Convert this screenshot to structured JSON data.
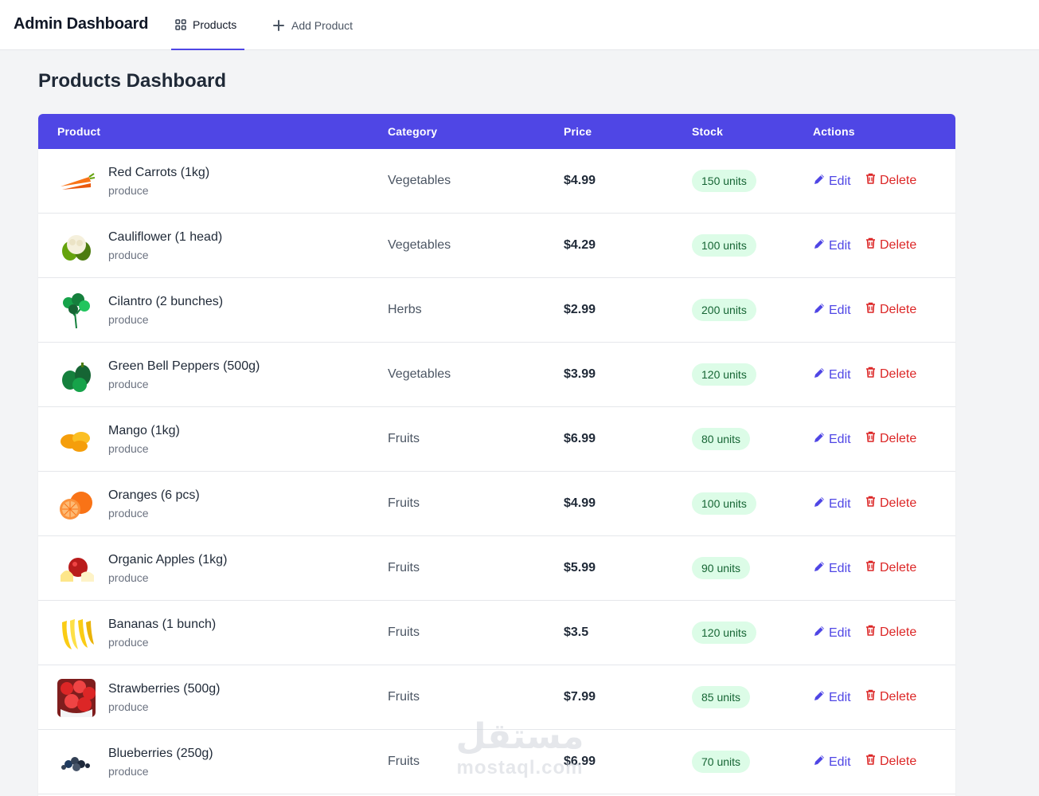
{
  "header": {
    "brand": "Admin Dashboard",
    "tabs": [
      {
        "label": "Products",
        "icon": "grid-icon",
        "active": true
      },
      {
        "label": "Add Product",
        "icon": "plus-icon",
        "active": false
      }
    ]
  },
  "page": {
    "title": "Products Dashboard"
  },
  "table": {
    "columns": [
      "Product",
      "Category",
      "Price",
      "Stock",
      "Actions"
    ],
    "edit_label": "Edit",
    "delete_label": "Delete",
    "rows": [
      {
        "name": "Red Carrots (1kg)",
        "sub": "produce",
        "category": "Vegetables",
        "price": "$4.99",
        "stock": "150 units",
        "image": "carrots"
      },
      {
        "name": "Cauliflower (1 head)",
        "sub": "produce",
        "category": "Vegetables",
        "price": "$4.29",
        "stock": "100 units",
        "image": "cauliflower"
      },
      {
        "name": "Cilantro (2 bunches)",
        "sub": "produce",
        "category": "Herbs",
        "price": "$2.99",
        "stock": "200 units",
        "image": "cilantro"
      },
      {
        "name": "Green Bell Peppers (500g)",
        "sub": "produce",
        "category": "Vegetables",
        "price": "$3.99",
        "stock": "120 units",
        "image": "peppers"
      },
      {
        "name": "Mango (1kg)",
        "sub": "produce",
        "category": "Fruits",
        "price": "$6.99",
        "stock": "80 units",
        "image": "mango"
      },
      {
        "name": "Oranges (6 pcs)",
        "sub": "produce",
        "category": "Fruits",
        "price": "$4.99",
        "stock": "100 units",
        "image": "oranges"
      },
      {
        "name": "Organic Apples (1kg)",
        "sub": "produce",
        "category": "Fruits",
        "price": "$5.99",
        "stock": "90 units",
        "image": "apples"
      },
      {
        "name": "Bananas (1 bunch)",
        "sub": "produce",
        "category": "Fruits",
        "price": "$3.5",
        "stock": "120 units",
        "image": "bananas"
      },
      {
        "name": "Strawberries (500g)",
        "sub": "produce",
        "category": "Fruits",
        "price": "$7.99",
        "stock": "85 units",
        "image": "strawberries"
      },
      {
        "name": "Blueberries (250g)",
        "sub": "produce",
        "category": "Fruits",
        "price": "$6.99",
        "stock": "70 units",
        "image": "blueberries"
      }
    ]
  },
  "watermark": {
    "arabic": "مستقل",
    "latin": "mostaql.com"
  },
  "colors": {
    "accent": "#4f46e5",
    "danger": "#dc2626",
    "stock_bg": "#dcfce7",
    "stock_text": "#166534",
    "page_bg": "#f3f4f6"
  }
}
